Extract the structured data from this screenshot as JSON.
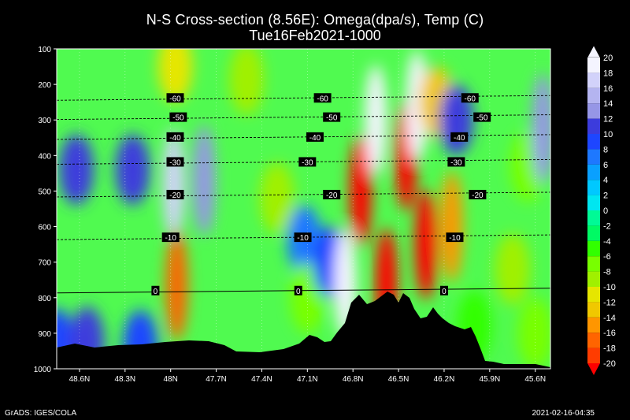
{
  "title": "N-S Cross-section (8.56E): Omega(dpa/s), Temp (C)",
  "subtitle": "Tue16Feb2021-1000",
  "footer_left": "GrADS: IGES/COLA",
  "footer_right": "2021-02-16-04:35",
  "chart_data": {
    "type": "heatmap",
    "title": "N-S Cross-section (8.56E): Omega(dpa/s), Temp (C)",
    "subtitle": "Tue16Feb2021-1000",
    "x_ticks": [
      "48.6N",
      "48.3N",
      "48N",
      "47.7N",
      "47.4N",
      "47.1N",
      "46.8N",
      "46.5N",
      "46.2N",
      "45.9N",
      "45.6N"
    ],
    "y_ticks": [
      "100",
      "200",
      "300",
      "400",
      "500",
      "600",
      "700",
      "800",
      "900",
      "1000"
    ],
    "ylim": [
      1000,
      100
    ],
    "colorbar": {
      "levels": [
        "20",
        "18",
        "16",
        "14",
        "12",
        "10",
        "8",
        "6",
        "4",
        "2",
        "0",
        "-2",
        "-4",
        "-6",
        "-8",
        "-10",
        "-12",
        "-14",
        "-16",
        "-18",
        "-20"
      ],
      "colors": [
        "#f4f4ff",
        "#d2d2fa",
        "#b4b4f0",
        "#9696e6",
        "#3c3cdc",
        "#1e46ff",
        "#1e78ff",
        "#0aa0ff",
        "#00c8ff",
        "#00e6f0",
        "#00fa96",
        "#00fa64",
        "#32ff00",
        "#78ff00",
        "#a0f000",
        "#e6e600",
        "#f0c800",
        "#ff9600",
        "#ff6400",
        "#ff3c00",
        "#ff0000"
      ]
    },
    "isotherms": [
      {
        "label": "-60",
        "p": 238,
        "label_lats": [
          47.97,
          47.0,
          46.03
        ]
      },
      {
        "label": "-50",
        "p": 292,
        "label_lats": [
          47.95,
          46.94,
          45.95
        ]
      },
      {
        "label": "-40",
        "p": 348,
        "label_lats": [
          47.97,
          47.05,
          46.1
        ]
      },
      {
        "label": "-30",
        "p": 418,
        "label_lats": [
          47.97,
          47.1,
          46.12
        ]
      },
      {
        "label": "-20",
        "p": 510,
        "label_lats": [
          47.97,
          46.94,
          45.98
        ]
      },
      {
        "label": "-10",
        "p": 630,
        "label_lats": [
          48.0,
          47.13,
          46.13
        ]
      },
      {
        "label": "0",
        "p": 780,
        "label_lats": [
          48.1,
          47.16,
          46.2
        ]
      }
    ],
    "series": [
      {
        "values": [
          {
            "lat": 48.75,
            "p": 930,
            "v": 10
          },
          {
            "lat": 48.62,
            "p": 440,
            "v": 12
          },
          {
            "lat": 48.55,
            "p": 925,
            "v": 12
          },
          {
            "lat": 48.25,
            "p": 440,
            "v": 12
          },
          {
            "lat": 48.2,
            "p": 935,
            "v": 10
          },
          {
            "lat": 47.98,
            "p": 480,
            "v": 18
          },
          {
            "lat": 47.97,
            "p": 150,
            "v": -10
          },
          {
            "lat": 47.96,
            "p": 765,
            "v": -16
          },
          {
            "lat": 47.78,
            "p": 470,
            "v": 14
          },
          {
            "lat": 47.5,
            "p": 185,
            "v": -8
          },
          {
            "lat": 47.3,
            "p": 520,
            "v": -8
          },
          {
            "lat": 47.12,
            "p": 640,
            "v": 8
          },
          {
            "lat": 47.1,
            "p": 800,
            "v": -6
          },
          {
            "lat": 46.95,
            "p": 700,
            "v": 10
          },
          {
            "lat": 46.85,
            "p": 760,
            "v": 20
          },
          {
            "lat": 46.75,
            "p": 500,
            "v": -20
          },
          {
            "lat": 46.65,
            "p": 300,
            "v": 20
          },
          {
            "lat": 46.58,
            "p": 760,
            "v": -20
          },
          {
            "lat": 46.45,
            "p": 400,
            "v": -20
          },
          {
            "lat": 46.38,
            "p": 260,
            "v": 20
          },
          {
            "lat": 46.32,
            "p": 650,
            "v": -20
          },
          {
            "lat": 46.25,
            "p": 250,
            "v": -12
          },
          {
            "lat": 46.12,
            "p": 300,
            "v": 12
          },
          {
            "lat": 46.15,
            "p": 600,
            "v": -14
          },
          {
            "lat": 45.75,
            "p": 720,
            "v": -8
          },
          {
            "lat": 45.65,
            "p": 430,
            "v": -6
          },
          {
            "lat": 45.55,
            "p": 325,
            "v": 14
          },
          {
            "lat": 45.6,
            "p": 900,
            "v": -6
          },
          {
            "lat": 46.0,
            "p": 880,
            "v": -4
          }
        ]
      }
    ]
  }
}
